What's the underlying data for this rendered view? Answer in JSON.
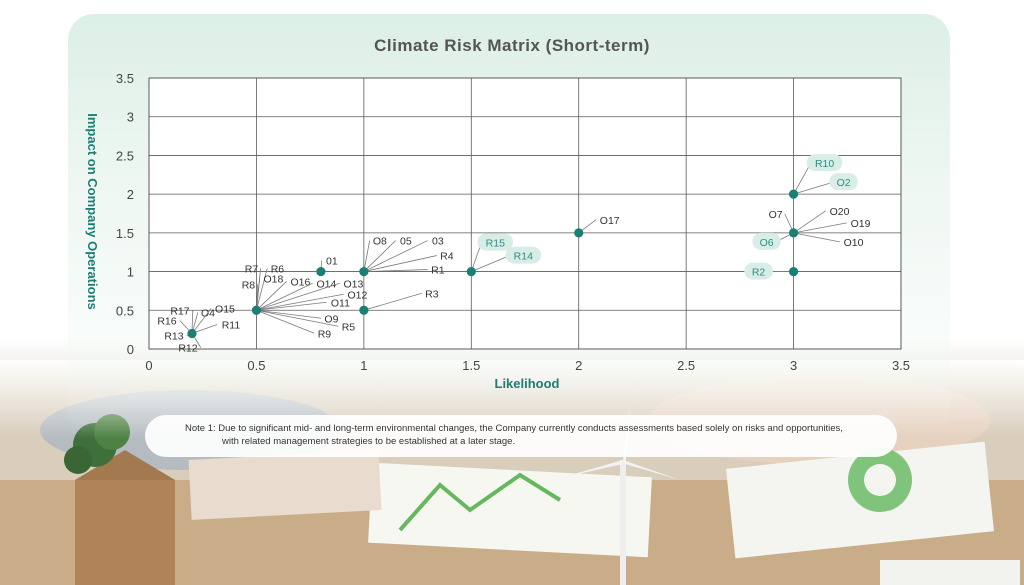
{
  "chart_data": {
    "type": "scatter",
    "title": "Climate Risk Matrix (Short-term)",
    "xlabel": "Likelihood",
    "ylabel": "Impact on Company Operations",
    "xlim": [
      0,
      3.5
    ],
    "ylim": [
      0,
      3.5
    ],
    "xticks": [
      "0",
      "0.5",
      "1",
      "1.5",
      "2",
      "2.5",
      "3",
      "3.5"
    ],
    "yticks": [
      "0",
      "0.5",
      "1",
      "1.5",
      "2",
      "2.5",
      "3",
      "3.5"
    ],
    "grid": true,
    "points": [
      {
        "x": 0.2,
        "y": 0.2,
        "labels": [
          "R17",
          "R16",
          "R13",
          "R12",
          "O4",
          "O15",
          "R11"
        ]
      },
      {
        "x": 0.5,
        "y": 0.5,
        "labels": [
          "R7",
          "R6",
          "R8",
          "O18",
          "O16",
          "O14",
          "O13",
          "O12",
          "O11",
          "O9",
          "R5",
          "R9"
        ]
      },
      {
        "x": 0.8,
        "y": 1.0,
        "labels": [
          "01"
        ]
      },
      {
        "x": 1.0,
        "y": 1.0,
        "labels": [
          "O8",
          "05",
          "03",
          "R4",
          "R1"
        ]
      },
      {
        "x": 1.0,
        "y": 0.5,
        "labels": [
          "R3"
        ]
      },
      {
        "x": 1.5,
        "y": 1.0,
        "labels": [
          "R15",
          "R14"
        ]
      },
      {
        "x": 2.0,
        "y": 1.5,
        "labels": [
          "O17"
        ]
      },
      {
        "x": 3.0,
        "y": 2.0,
        "labels": [
          "R10",
          "O2"
        ]
      },
      {
        "x": 3.0,
        "y": 1.5,
        "labels": [
          "O7",
          "O20",
          "O19",
          "O6",
          "O10"
        ]
      },
      {
        "x": 3.0,
        "y": 1.0,
        "labels": [
          "R2"
        ]
      }
    ],
    "highlighted_labels": [
      "R15",
      "R14",
      "R10",
      "O2",
      "O6",
      "R2"
    ],
    "colors": {
      "point": "#1a7f74",
      "axis_title": "#1a7f74",
      "highlight": "#d8ede6",
      "leader": "#7a7a7a",
      "grid": "#5a5a5a"
    }
  },
  "note": {
    "line1": "Note 1: Due to significant mid- and long-term environmental changes, the Company currently conducts assessments based solely on risks and opportunities,",
    "line2": "with related management strategies to be established at a later stage."
  }
}
